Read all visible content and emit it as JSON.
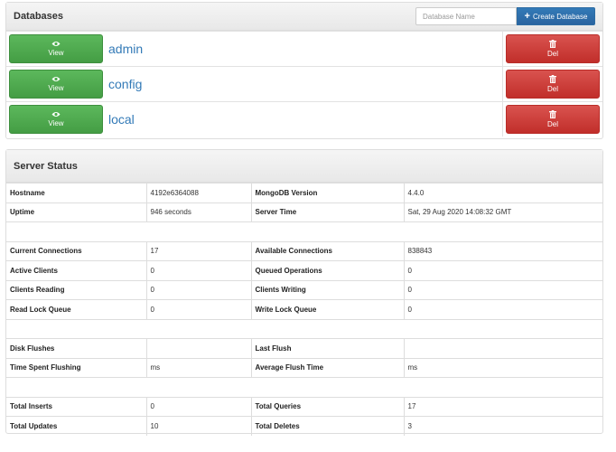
{
  "databases": {
    "title": "Databases",
    "search_placeholder": "Database Name",
    "create_label": "Create Database",
    "view_label": "View",
    "del_label": "Del",
    "items": [
      {
        "name": "admin"
      },
      {
        "name": "config"
      },
      {
        "name": "local"
      }
    ]
  },
  "server_status": {
    "title": "Server Status",
    "rows": [
      {
        "k1": "Hostname",
        "v1": "4192e6364088",
        "k2": "MongoDB Version",
        "v2": "4.4.0"
      },
      {
        "k1": "Uptime",
        "v1": "946 seconds",
        "k2": "Server Time",
        "v2": "Sat, 29 Aug 2020 14:08:32 GMT"
      },
      {
        "k1": "Current Connections",
        "v1": "17",
        "k2": "Available Connections",
        "v2": "838843"
      },
      {
        "k1": "Active Clients",
        "v1": "0",
        "k2": "Queued Operations",
        "v2": "0"
      },
      {
        "k1": "Clients Reading",
        "v1": "0",
        "k2": "Clients Writing",
        "v2": "0"
      },
      {
        "k1": "Read Lock Queue",
        "v1": "0",
        "k2": "Write Lock Queue",
        "v2": "0"
      },
      {
        "k1": "Disk Flushes",
        "v1": "",
        "k2": "Last Flush",
        "v2": ""
      },
      {
        "k1": "Time Spent Flushing",
        "v1": "ms",
        "k2": "Average Flush Time",
        "v2": "ms"
      },
      {
        "k1": "Total Inserts",
        "v1": "0",
        "k2": "Total Queries",
        "v2": "17"
      },
      {
        "k1": "Total Updates",
        "v1": "10",
        "k2": "Total Deletes",
        "v2": "3"
      }
    ]
  },
  "colors": {
    "view_green": "#5cb85c",
    "delete_red": "#d9534f",
    "primary_blue": "#337ab7",
    "link_blue": "#337ab7"
  },
  "icons": {
    "view": "eye-icon",
    "delete": "trash-icon",
    "create": "plus-icon"
  }
}
